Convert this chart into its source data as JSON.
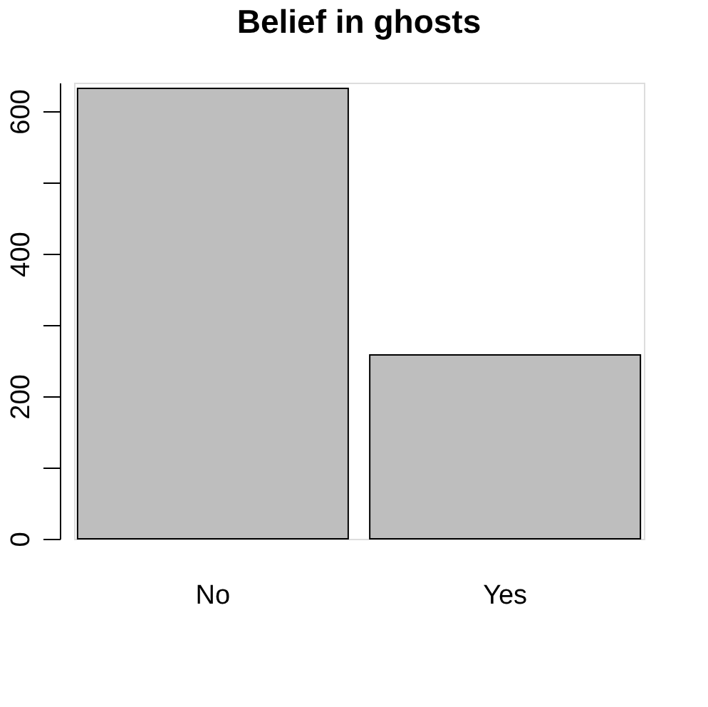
{
  "chart_data": {
    "type": "bar",
    "title": "Belief in ghosts",
    "categories": [
      "No",
      "Yes"
    ],
    "values": [
      632,
      258
    ],
    "color": "#bebebe",
    "ylim": [
      0,
      640
    ],
    "yticks": [
      0,
      {
        "value": 100,
        "label": null
      },
      200,
      {
        "value": 300,
        "label": null
      },
      400,
      {
        "value": 500,
        "label": null
      },
      600
    ],
    "grid": false
  }
}
